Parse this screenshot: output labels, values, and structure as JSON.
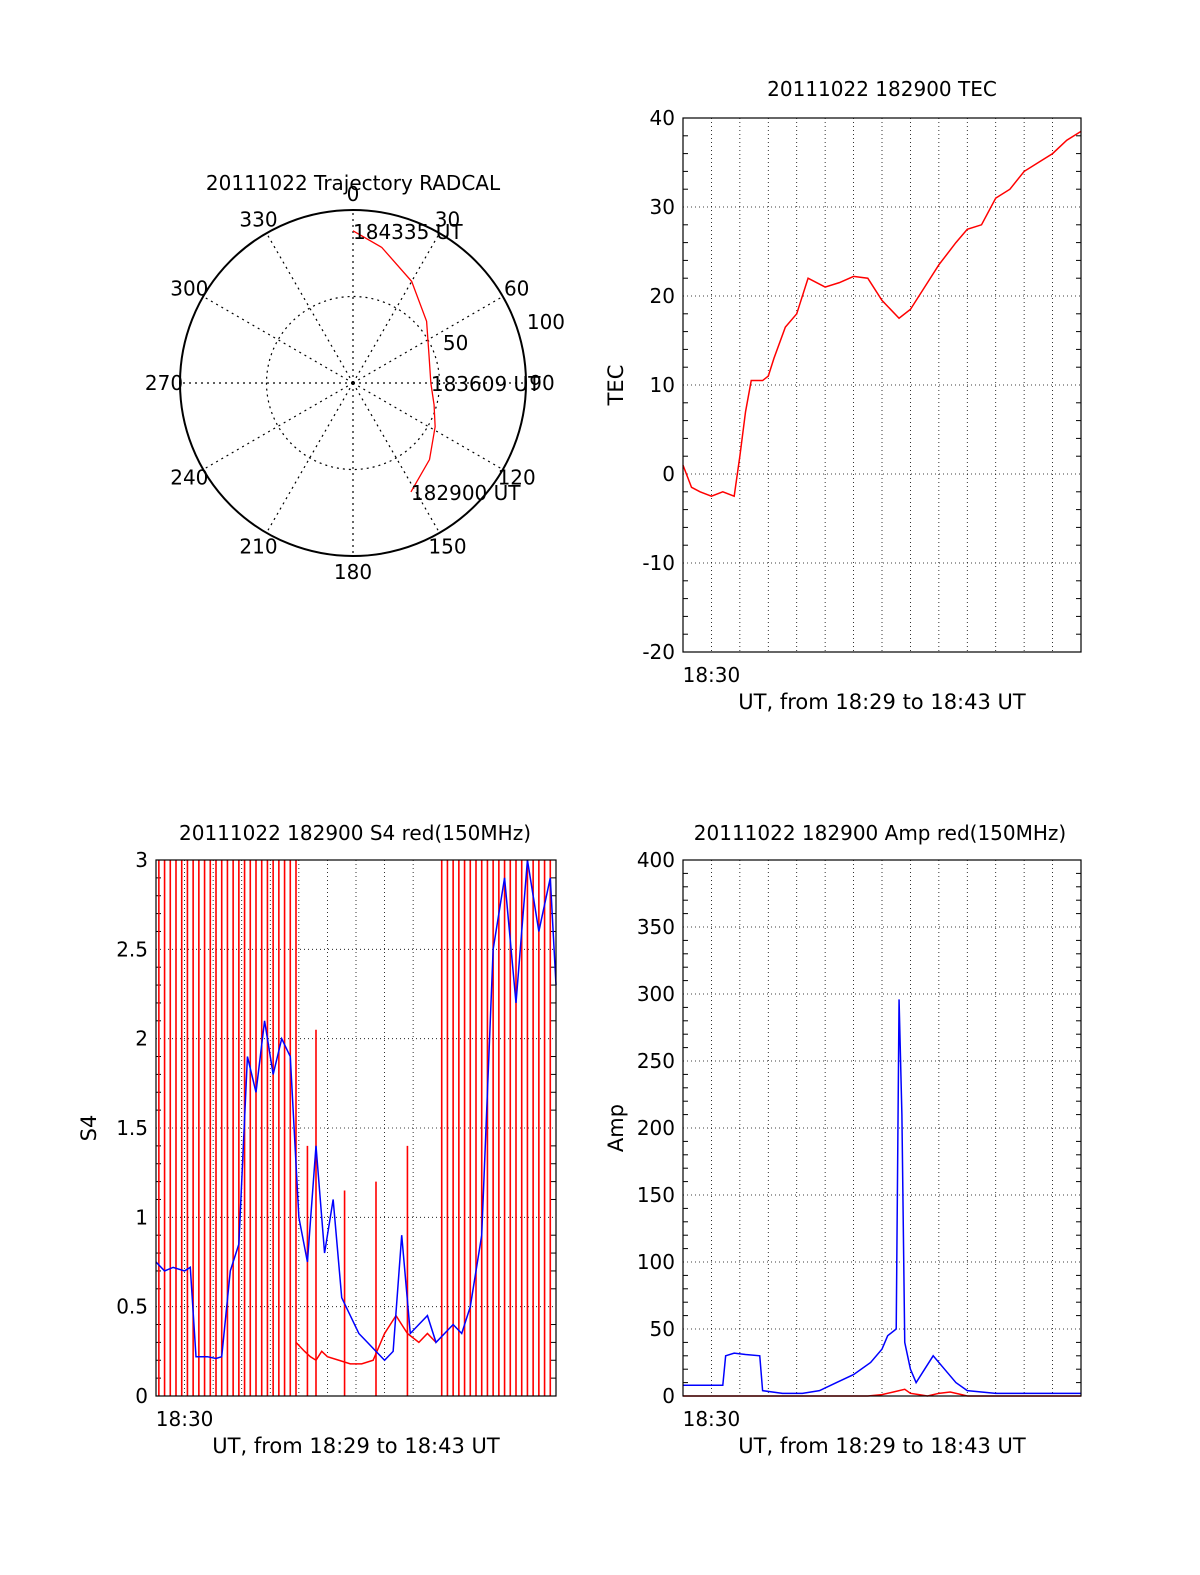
{
  "chart_data": [
    {
      "type": "polar",
      "title": "20111022 Trajectory RADCAL",
      "angle_labels": [
        "0",
        "30",
        "60",
        "90",
        "120",
        "150",
        "180",
        "210",
        "240",
        "270",
        "300",
        "330"
      ],
      "radius_labels": [
        "50",
        "100"
      ],
      "r_max": 100,
      "series": [
        {
          "color": "#ff0000",
          "points": [
            {
              "az": 152,
              "el": 70
            },
            {
              "az": 135,
              "el": 60
            },
            {
              "az": 118,
              "el": 50
            },
            {
              "az": 105,
              "el": 44
            },
            {
              "az": 90,
              "el": 40
            },
            {
              "az": 70,
              "el": 42
            },
            {
              "az": 50,
              "el": 52
            },
            {
              "az": 30,
              "el": 66
            },
            {
              "az": 12,
              "el": 80
            },
            {
              "az": 0,
              "el": 89
            }
          ]
        }
      ],
      "annotations": [
        {
          "text": "184335 UT",
          "az": 0,
          "el": 89
        },
        {
          "text": "183609 UT",
          "az": 90,
          "el": 40
        },
        {
          "text": "182900 UT",
          "az": 152,
          "el": 70
        }
      ]
    },
    {
      "type": "line",
      "title": "20111022 182900 TEC",
      "xlabel": "UT, from 18:29 to 18:43 UT",
      "ylabel": "TEC",
      "x_range": [
        "18:29",
        "18:43"
      ],
      "xlim_minutes": [
        29,
        43
      ],
      "x_tick_label": "18:30",
      "yticks": [
        "-20",
        "-10",
        "0",
        "10",
        "20",
        "30",
        "40"
      ],
      "ylim": [
        -20,
        40
      ],
      "series": [
        {
          "color": "#ff0000",
          "x": [
            29.0,
            29.3,
            29.6,
            30.0,
            30.4,
            30.8,
            31.0,
            31.2,
            31.4,
            31.8,
            32.0,
            32.2,
            32.6,
            33.0,
            33.4,
            34.0,
            34.5,
            35.0,
            35.5,
            36.0,
            36.6,
            37.0,
            37.5,
            38.0,
            38.6,
            39.0,
            39.5,
            40.0,
            40.5,
            41.0,
            41.5,
            42.0,
            42.5,
            43.0
          ],
          "y": [
            1,
            -1.5,
            -2,
            -2.5,
            -2,
            -2.5,
            2,
            7,
            10.5,
            10.5,
            11,
            13,
            16.5,
            18,
            22,
            21,
            21.5,
            22.2,
            22,
            19.5,
            17.5,
            18.5,
            21,
            23.5,
            26,
            27.5,
            28,
            31,
            32,
            34,
            35,
            36,
            37.5,
            38.5
          ]
        }
      ]
    },
    {
      "type": "line",
      "title": "20111022 182900 S4 red(150MHz)",
      "xlabel": "UT, from 18:29 to 18:43 UT",
      "ylabel": "S4",
      "x_range": [
        "18:29",
        "18:43"
      ],
      "xlim_minutes": [
        29,
        43
      ],
      "x_tick_label": "18:30",
      "yticks": [
        "0",
        "0.5",
        "1",
        "1.5",
        "2",
        "2.5",
        "3"
      ],
      "ylim": [
        0,
        3
      ],
      "series": [
        {
          "color": "#ff0000",
          "x": [
            33.9,
            34.2,
            34.4,
            34.6,
            34.8,
            35.0,
            35.4,
            35.8,
            36.2,
            36.6,
            37.0,
            37.4,
            37.8,
            38.2,
            38.5,
            38.8
          ],
          "y": [
            0.3,
            0.25,
            0.22,
            0.2,
            0.25,
            0.22,
            0.2,
            0.18,
            0.18,
            0.2,
            0.35,
            0.45,
            0.35,
            0.3,
            0.35,
            0.3
          ],
          "spikes": [
            {
              "x": 29.1,
              "y": 3
            },
            {
              "x": 29.3,
              "y": 3
            },
            {
              "x": 29.5,
              "y": 3
            },
            {
              "x": 29.7,
              "y": 3
            },
            {
              "x": 29.9,
              "y": 3
            },
            {
              "x": 30.1,
              "y": 3
            },
            {
              "x": 30.3,
              "y": 3
            },
            {
              "x": 30.5,
              "y": 3
            },
            {
              "x": 30.7,
              "y": 3
            },
            {
              "x": 30.9,
              "y": 3
            },
            {
              "x": 31.1,
              "y": 3
            },
            {
              "x": 31.3,
              "y": 3
            },
            {
              "x": 31.5,
              "y": 3
            },
            {
              "x": 31.7,
              "y": 3
            },
            {
              "x": 31.9,
              "y": 3
            },
            {
              "x": 32.1,
              "y": 3
            },
            {
              "x": 32.3,
              "y": 3
            },
            {
              "x": 32.5,
              "y": 3
            },
            {
              "x": 32.7,
              "y": 3
            },
            {
              "x": 32.9,
              "y": 3
            },
            {
              "x": 33.1,
              "y": 3
            },
            {
              "x": 33.3,
              "y": 3
            },
            {
              "x": 33.5,
              "y": 3
            },
            {
              "x": 33.7,
              "y": 3
            },
            {
              "x": 33.9,
              "y": 3
            },
            {
              "x": 34.3,
              "y": 1.4
            },
            {
              "x": 34.6,
              "y": 2.05
            },
            {
              "x": 35.6,
              "y": 1.15
            },
            {
              "x": 36.7,
              "y": 1.2
            },
            {
              "x": 37.8,
              "y": 1.4
            },
            {
              "x": 39.0,
              "y": 3
            },
            {
              "x": 39.2,
              "y": 3
            },
            {
              "x": 39.4,
              "y": 3
            },
            {
              "x": 39.6,
              "y": 3
            },
            {
              "x": 39.8,
              "y": 3
            },
            {
              "x": 40.0,
              "y": 3
            },
            {
              "x": 40.2,
              "y": 3
            },
            {
              "x": 40.4,
              "y": 3
            },
            {
              "x": 40.6,
              "y": 3
            },
            {
              "x": 40.8,
              "y": 3
            },
            {
              "x": 41.0,
              "y": 3
            },
            {
              "x": 41.2,
              "y": 3
            },
            {
              "x": 41.4,
              "y": 3
            },
            {
              "x": 41.6,
              "y": 3
            },
            {
              "x": 41.8,
              "y": 3
            },
            {
              "x": 42.0,
              "y": 3
            },
            {
              "x": 42.2,
              "y": 3
            },
            {
              "x": 42.4,
              "y": 3
            },
            {
              "x": 42.6,
              "y": 3
            },
            {
              "x": 42.8,
              "y": 3
            }
          ]
        },
        {
          "color": "#0000ff",
          "x": [
            29.0,
            29.3,
            29.6,
            30.0,
            30.2,
            30.4,
            30.8,
            31.1,
            31.3,
            31.6,
            31.9,
            32.2,
            32.5,
            32.8,
            33.1,
            33.4,
            33.7,
            34.0,
            34.3,
            34.6,
            34.9,
            35.2,
            35.5,
            35.8,
            36.1,
            36.4,
            36.7,
            37.0,
            37.3,
            37.6,
            37.9,
            38.2,
            38.5,
            38.8,
            39.1,
            39.4,
            39.7,
            40.0,
            40.4,
            40.8,
            41.2,
            41.6,
            42.0,
            42.4,
            42.8,
            43.0
          ],
          "y": [
            0.75,
            0.7,
            0.72,
            0.7,
            0.72,
            0.22,
            0.22,
            0.21,
            0.22,
            0.7,
            0.85,
            1.9,
            1.7,
            2.1,
            1.8,
            2.0,
            1.9,
            1.0,
            0.75,
            1.4,
            0.8,
            1.1,
            0.55,
            0.45,
            0.35,
            0.3,
            0.25,
            0.2,
            0.25,
            0.9,
            0.35,
            0.4,
            0.45,
            0.3,
            0.35,
            0.4,
            0.35,
            0.5,
            0.9,
            2.5,
            2.9,
            2.2,
            3.0,
            2.6,
            2.9,
            2.3
          ]
        }
      ]
    },
    {
      "type": "line",
      "title": "20111022 182900 Amp red(150MHz)",
      "xlabel": "UT, from 18:29 to 18:43 UT",
      "ylabel": "Amp",
      "x_range": [
        "18:29",
        "18:43"
      ],
      "xlim_minutes": [
        29,
        43
      ],
      "x_tick_label": "18:30",
      "yticks": [
        "0",
        "50",
        "100",
        "150",
        "200",
        "250",
        "300",
        "350",
        "400"
      ],
      "ylim": [
        0,
        400
      ],
      "series": [
        {
          "color": "#0000ff",
          "x": [
            29.0,
            30.0,
            30.4,
            30.5,
            30.8,
            31.2,
            31.7,
            31.8,
            32.5,
            33.2,
            33.8,
            34.4,
            35.0,
            35.6,
            36.0,
            36.2,
            36.5,
            36.6,
            36.7,
            36.8,
            36.9,
            37.0,
            37.2,
            37.5,
            37.8,
            38.2,
            38.6,
            39.0,
            40.0,
            41.0,
            42.0,
            43.0
          ],
          "y": [
            8,
            8,
            8,
            30,
            32,
            31,
            30,
            4,
            2,
            2,
            4,
            10,
            16,
            25,
            35,
            45,
            50,
            296,
            210,
            40,
            30,
            20,
            10,
            20,
            30,
            20,
            10,
            4,
            2,
            2,
            2,
            2
          ]
        },
        {
          "color": "#ff0000",
          "x": [
            29.0,
            33.0,
            35.5,
            36.0,
            36.4,
            36.8,
            37.0,
            37.3,
            37.6,
            38.0,
            38.4,
            38.8,
            39.0,
            43.0
          ],
          "y": [
            0,
            0,
            0,
            1,
            3,
            5,
            2,
            1,
            0,
            2,
            3,
            1,
            0,
            0
          ]
        }
      ]
    }
  ]
}
